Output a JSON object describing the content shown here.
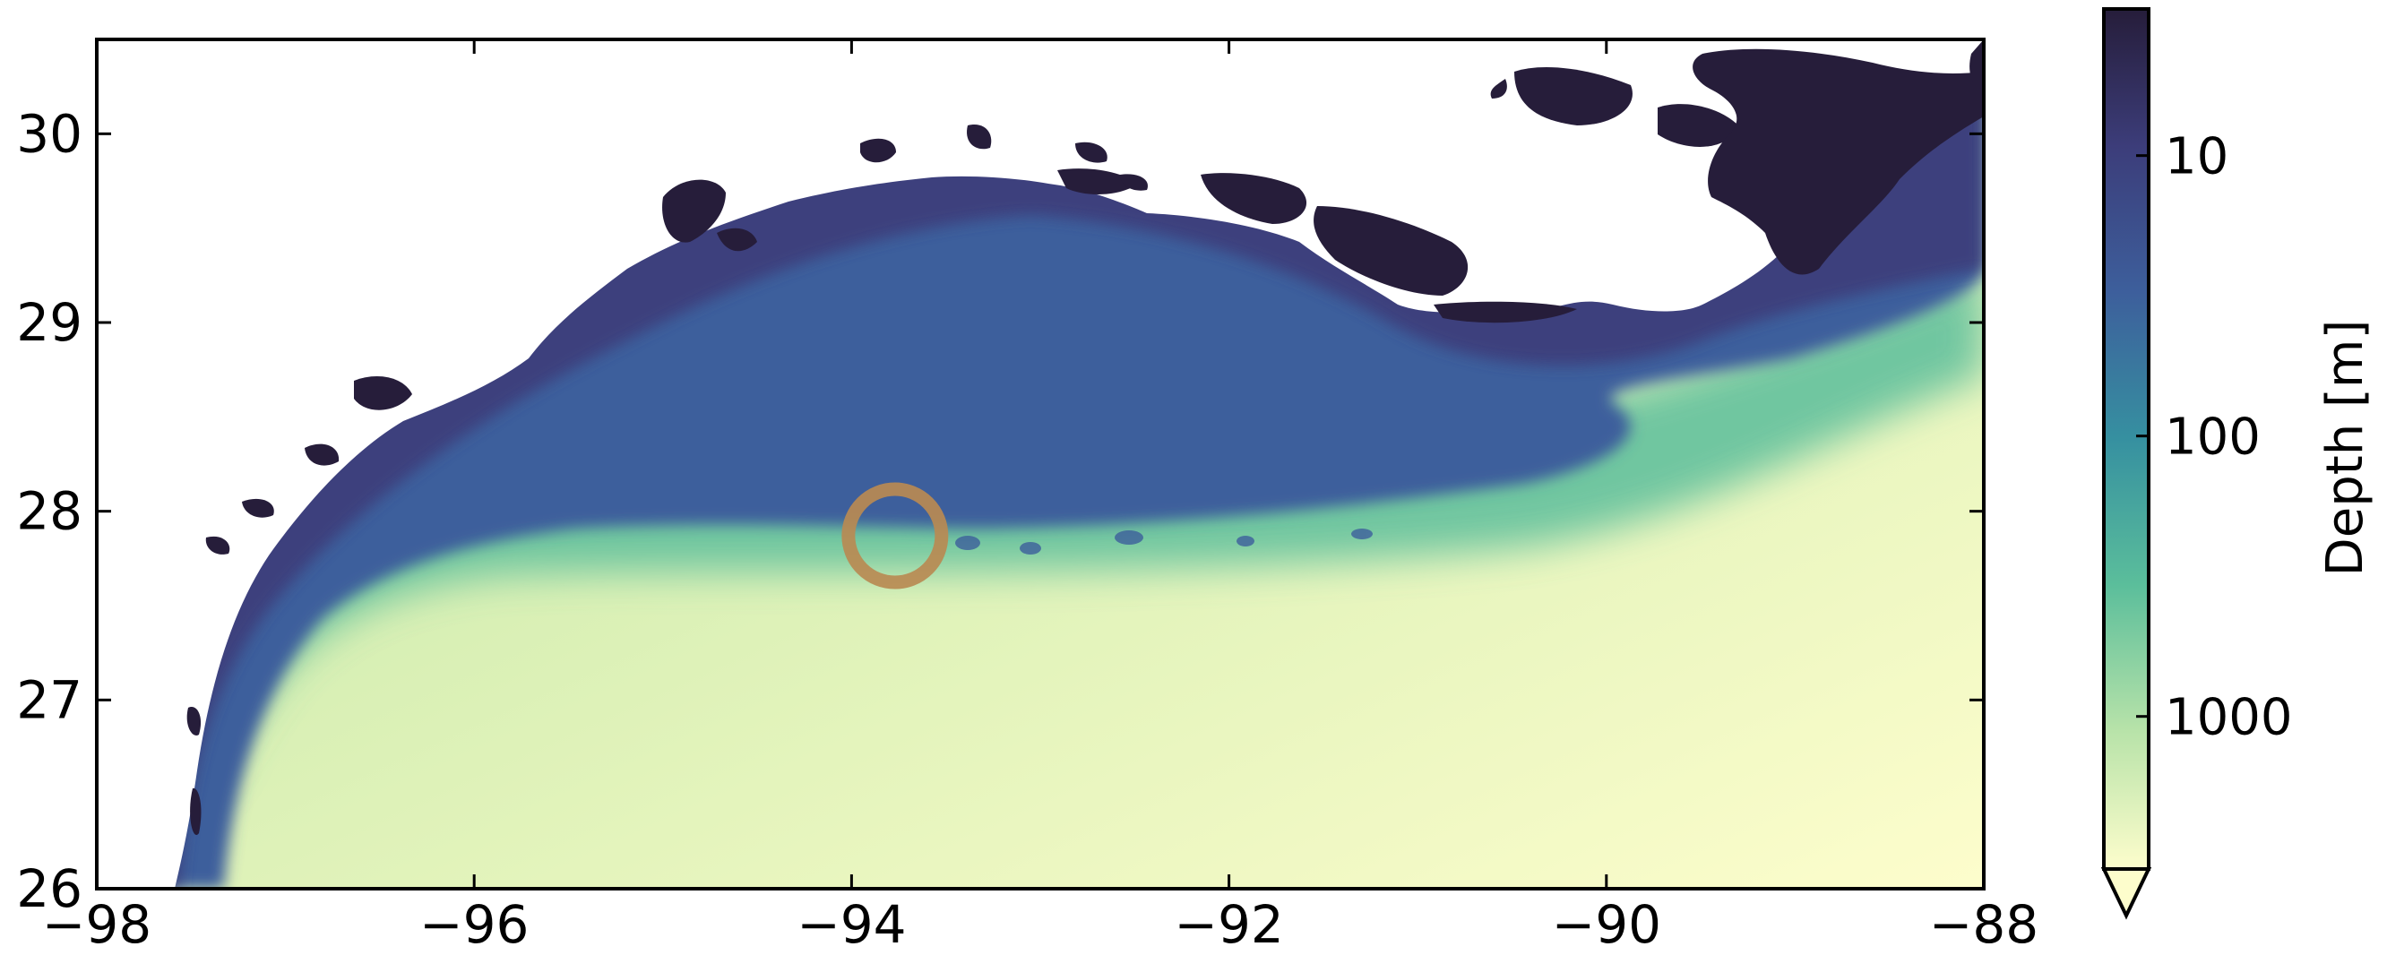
{
  "chart_data": {
    "type": "heatmap",
    "title": "",
    "xlabel": "",
    "ylabel": "",
    "xlim": [
      -98,
      -88
    ],
    "ylim": [
      26,
      30.5
    ],
    "x_ticks": [
      -98,
      -96,
      -94,
      -92,
      -90,
      -88
    ],
    "x_tick_labels": [
      "−98",
      "−96",
      "−94",
      "−92",
      "−90",
      "−88"
    ],
    "y_ticks": [
      26,
      27,
      28,
      29,
      30
    ],
    "y_tick_labels": [
      "26",
      "27",
      "28",
      "29",
      "30"
    ],
    "colorbar": {
      "label": "Depth [m]",
      "scale": "log",
      "ticks": [
        10,
        100,
        1000
      ],
      "tick_labels": [
        "10",
        "100",
        "1000"
      ],
      "range": [
        3,
        3500
      ],
      "extend": "min",
      "colors": [
        "#fdfdcc",
        "#b8e3a9",
        "#5bbe9b",
        "#3690a0",
        "#3d5f9c",
        "#3c3d7a",
        "#261d3a"
      ]
    },
    "marker": {
      "shape": "circle",
      "lon": -93.77,
      "lat": 27.87,
      "color": "#b88a52"
    },
    "land_color": "#ffffff",
    "lake_color": "#261d3a",
    "grid": false
  }
}
